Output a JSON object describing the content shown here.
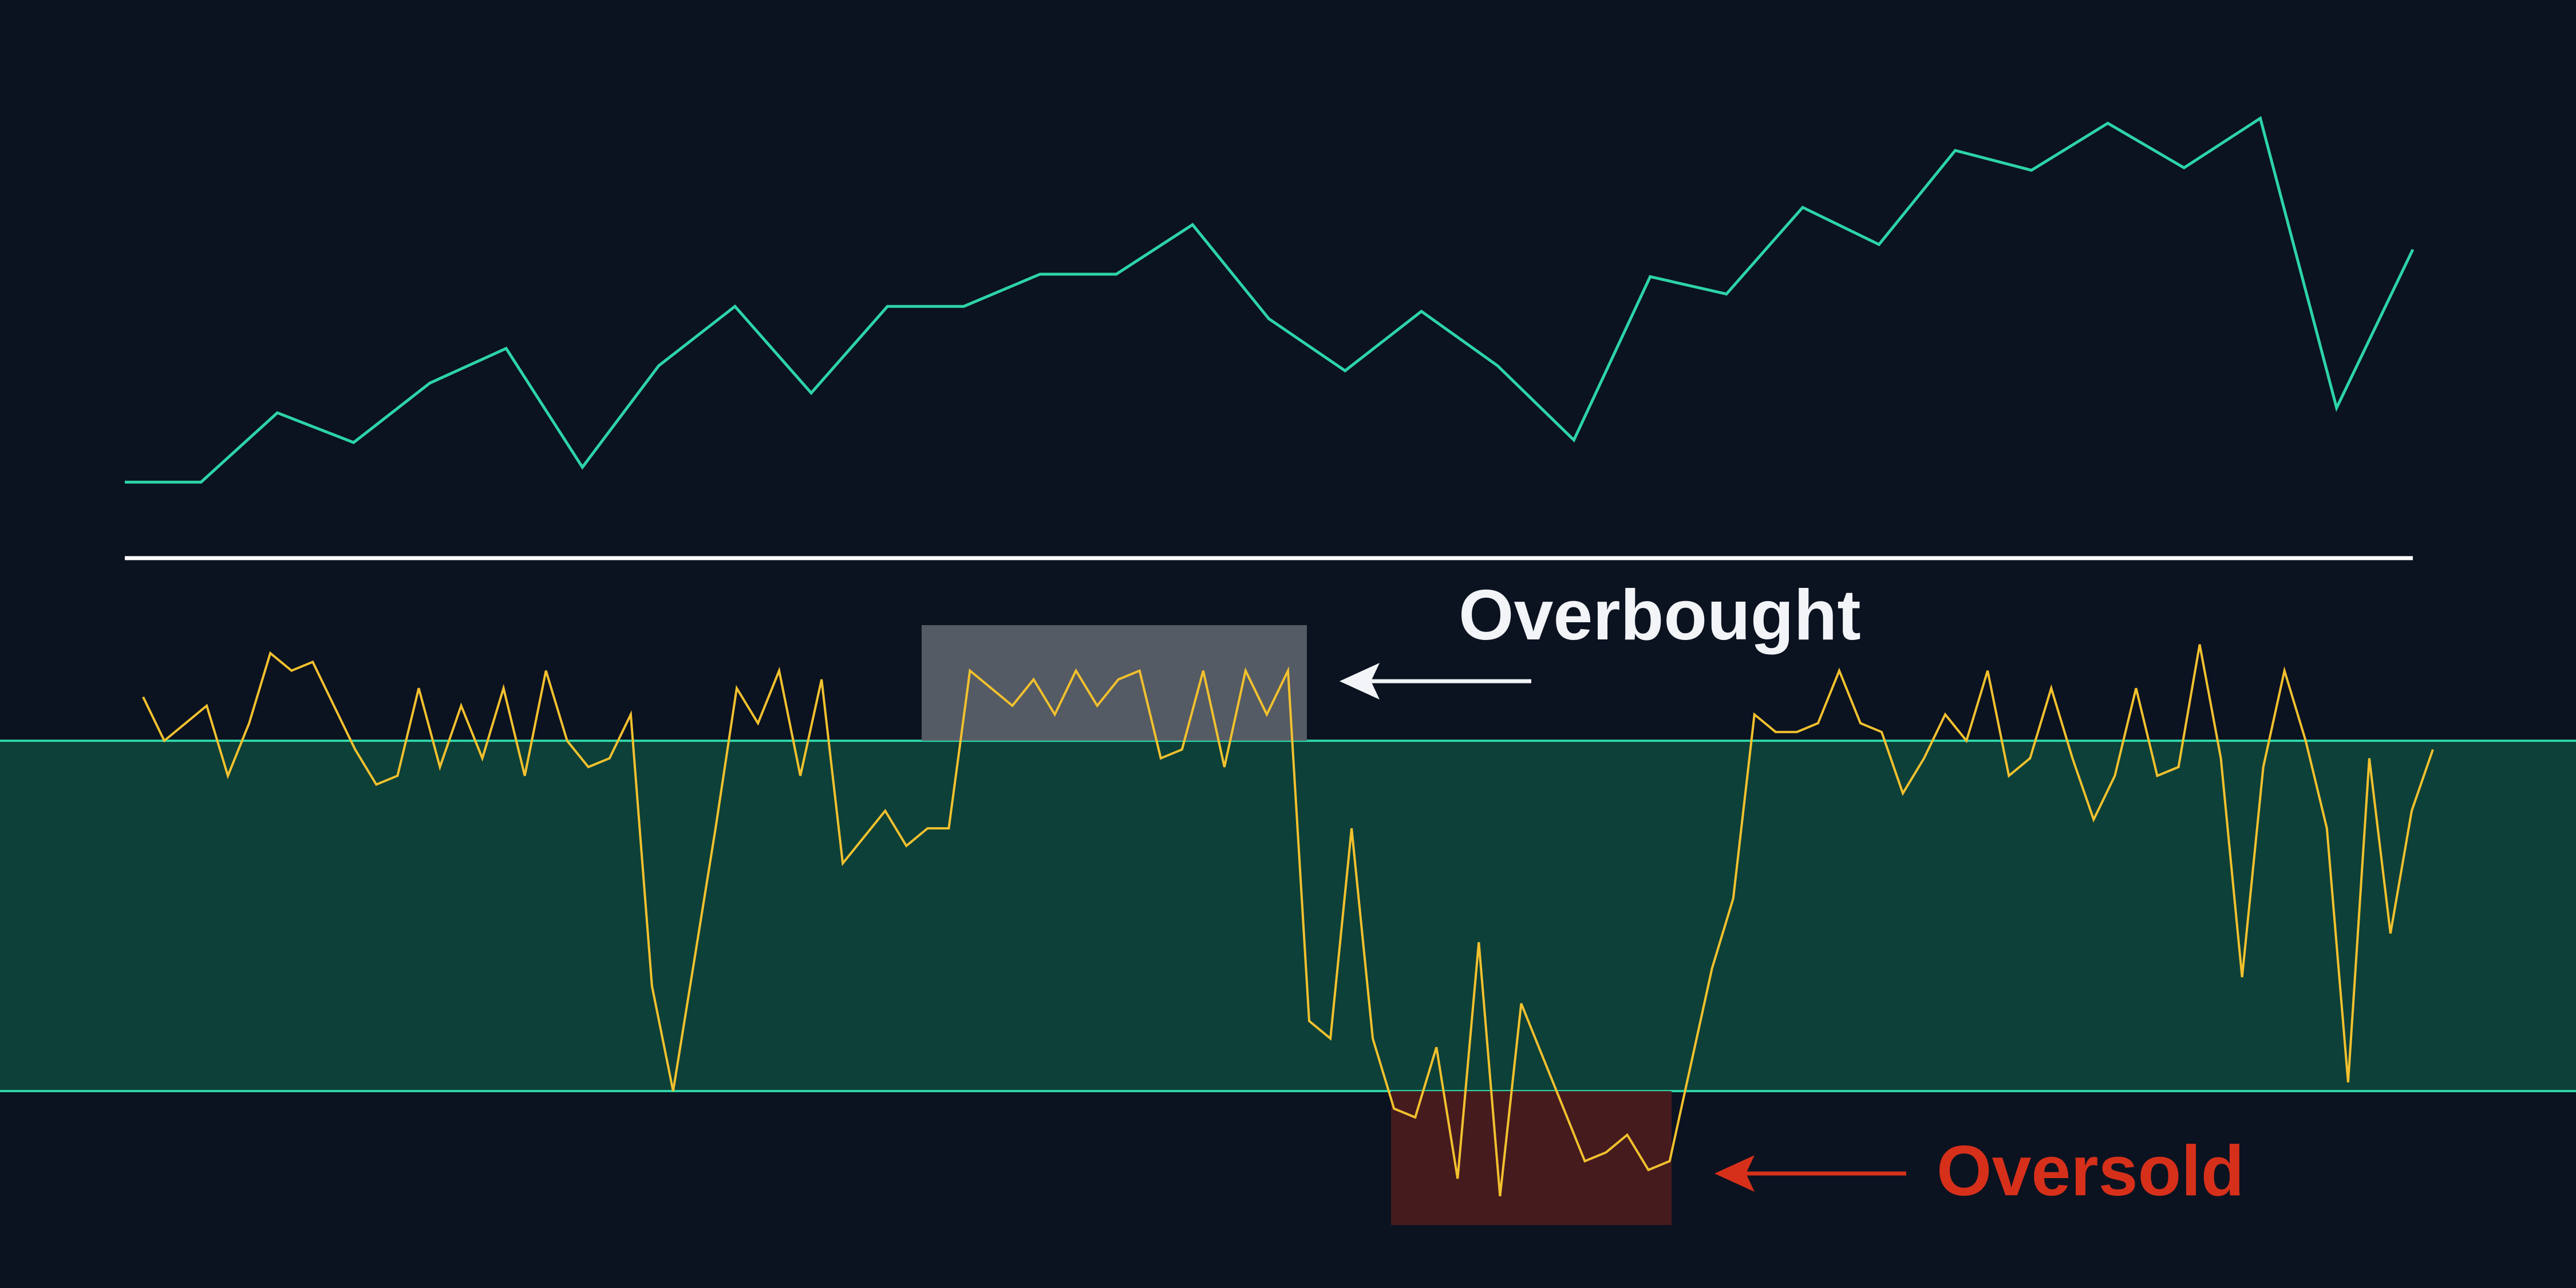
{
  "chart_data": [
    {
      "type": "line",
      "series": [
        {
          "color": "#2dd4a7",
          "values": [
            18,
            18,
            46,
            34,
            58,
            72,
            24,
            65,
            89,
            54,
            89,
            89,
            102,
            102,
            122,
            84,
            63,
            87,
            65,
            35,
            101,
            94,
            129,
            114,
            152,
            144,
            163,
            145,
            165,
            48,
            112
          ]
        }
      ],
      "grid": false
    },
    {
      "type": "line",
      "series": [
        {
          "color": "#f2c12e",
          "values": [
            75,
            70,
            72,
            74,
            66,
            72,
            80,
            78,
            79,
            74,
            69,
            65,
            66,
            76,
            67,
            74,
            68,
            76,
            66,
            78,
            70,
            67,
            68,
            73,
            42,
            30,
            45,
            60,
            76,
            72,
            78,
            66,
            77,
            56,
            59,
            62,
            58,
            60,
            60,
            78,
            76,
            74,
            77,
            73,
            78,
            74,
            77,
            78,
            68,
            69,
            78,
            67,
            78,
            73,
            78,
            38,
            36,
            60,
            36,
            28,
            27,
            35,
            20,
            47,
            18,
            40,
            34,
            28,
            22,
            23,
            25,
            21,
            22,
            33,
            44,
            52,
            73,
            71,
            71,
            72,
            78,
            72,
            71,
            64,
            68,
            73,
            70,
            78,
            66,
            68,
            76,
            68,
            61,
            66,
            76,
            66,
            67,
            81,
            68,
            43,
            67,
            78,
            70,
            60,
            31,
            68,
            48,
            62,
            69
          ],
          "marker": "none"
        }
      ],
      "bands": [
        {
          "from": 30,
          "to": 70,
          "color": "#0d4038"
        }
      ],
      "grid": false
    }
  ],
  "annotations": {
    "overbought": {
      "text": "Overbought",
      "color": "#f2f4f7",
      "box_color": "#5a6068"
    },
    "oversold": {
      "text": "Oversold",
      "color": "#d6301a",
      "box_color": "#4a1c1f"
    }
  },
  "colors": {
    "background": "#0b1220",
    "divider": "#ffffff",
    "band_border": "#2dd4a7"
  }
}
